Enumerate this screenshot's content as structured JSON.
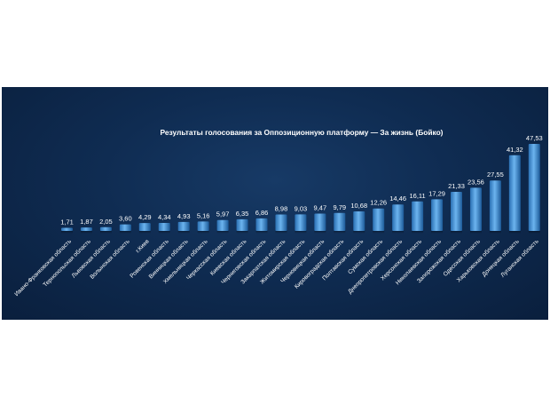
{
  "chart_data": {
    "type": "bar",
    "title": "Результаты голосования за Оппозиционную платформу — За жизнь (Бойко)",
    "categories": [
      "Ивано-Франковская область",
      "Тернопольская область",
      "Львовская область",
      "Волынская область",
      "г.Киев",
      "Ровенская область",
      "Винницкая область",
      "Хмельницкая область",
      "Черкасская область",
      "Киевская область",
      "Черниговская область",
      "Закарпатская область",
      "Житомирская область",
      "Черновицкая область",
      "Кировоградская область",
      "Полтавская область",
      "Сумская область",
      "Днепропетровская область",
      "Херсонская область",
      "Николаевская область",
      "Запорожская область",
      "Одесская область",
      "Харьковская область",
      "Донецкая область",
      "Луганская область"
    ],
    "values": [
      1.71,
      1.87,
      2.05,
      3.6,
      4.29,
      4.34,
      4.93,
      5.16,
      5.97,
      6.35,
      6.86,
      8.98,
      9.03,
      9.47,
      9.79,
      10.68,
      12.26,
      14.46,
      16.11,
      17.29,
      21.33,
      23.56,
      27.55,
      41.32,
      47.53
    ],
    "value_labels": [
      "1,71",
      "1,87",
      "2,05",
      "3,60",
      "4,29",
      "4,34",
      "4,93",
      "5,16",
      "5,97",
      "6,35",
      "6,86",
      "8,98",
      "9,03",
      "9,47",
      "9,79",
      "10,68",
      "12,26",
      "14,46",
      "16,11",
      "17,29",
      "21,33",
      "23,56",
      "27,55",
      "41,32",
      "47,53"
    ],
    "ylim": [
      0,
      50
    ],
    "grid": false,
    "legend": "none",
    "colors": {
      "panel": "#0f2c52",
      "bar_top": "#5aa6e6",
      "bar_bottom": "#1f5f9f",
      "text": "#ffffff"
    }
  }
}
